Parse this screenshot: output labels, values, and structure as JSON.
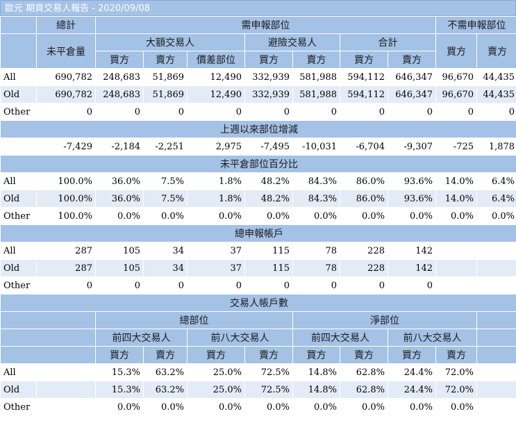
{
  "title": "歐元 期貨交易人報告 - 2020/09/08",
  "headers": {
    "total": "總計",
    "reportable": "需申報部位",
    "nonreportable": "不需申報部位",
    "open_interest": "未平倉量",
    "large_traders": "大額交易人",
    "hedgers": "避險交易人",
    "combined": "合計",
    "buy": "買方",
    "sell": "賣方",
    "spread": "價差部位"
  },
  "positions": [
    {
      "label": "All",
      "values": [
        "690,782",
        "248,683",
        "51,869",
        "12,490",
        "332,939",
        "581,988",
        "594,112",
        "646,347",
        "96,670",
        "44,435"
      ]
    },
    {
      "label": "Old",
      "values": [
        "690,782",
        "248,683",
        "51,869",
        "12,490",
        "332,939",
        "581,988",
        "594,112",
        "646,347",
        "96,670",
        "44,435"
      ]
    },
    {
      "label": "Other",
      "values": [
        "0",
        "0",
        "0",
        "0",
        "0",
        "0",
        "0",
        "0",
        "0",
        "0"
      ]
    }
  ],
  "changes_title": "上週以來部位增減",
  "changes": {
    "label": "",
    "values": [
      "-7,429",
      "-2,184",
      "-2,251",
      "2,975",
      "-7,495",
      "-10,031",
      "-6,704",
      "-9,307",
      "-725",
      "1,878"
    ]
  },
  "percent_title": "未平倉部位百分比",
  "percent": [
    {
      "label": "All",
      "values": [
        "100.0%",
        "36.0%",
        "7.5%",
        "1.8%",
        "48.2%",
        "84.3%",
        "86.0%",
        "93.6%",
        "14.0%",
        "6.4%"
      ]
    },
    {
      "label": "Old",
      "values": [
        "100.0%",
        "36.0%",
        "7.5%",
        "1.8%",
        "48.2%",
        "84.3%",
        "86.0%",
        "93.6%",
        "14.0%",
        "6.4%"
      ]
    },
    {
      "label": "Other",
      "values": [
        "100.0%",
        "0.0%",
        "0.0%",
        "0.0%",
        "0.0%",
        "0.0%",
        "0.0%",
        "0.0%",
        "0.0%",
        "0.0%"
      ]
    }
  ],
  "accounts_title": "總申報帳戶",
  "accounts": [
    {
      "label": "All",
      "values": [
        "287",
        "105",
        "34",
        "37",
        "115",
        "78",
        "228",
        "142",
        "",
        ""
      ]
    },
    {
      "label": "Old",
      "values": [
        "287",
        "105",
        "34",
        "37",
        "115",
        "78",
        "228",
        "142",
        "",
        ""
      ]
    },
    {
      "label": "Other",
      "values": [
        "0",
        "0",
        "0",
        "0",
        "0",
        "0",
        "0",
        "0",
        "",
        ""
      ]
    }
  ],
  "concentration_title": "交易人帳戶數",
  "concentration_headers": {
    "gross": "總部位",
    "net": "淨部位",
    "top4": "前四大交易人",
    "top8": "前八大交易人",
    "buy": "買方",
    "sell": "賣方"
  },
  "concentration": [
    {
      "label": "All",
      "values": [
        "15.3%",
        "63.2%",
        "25.0%",
        "72.5%",
        "14.8%",
        "62.8%",
        "24.4%",
        "72.0%"
      ]
    },
    {
      "label": "Old",
      "values": [
        "15.3%",
        "63.2%",
        "25.0%",
        "72.5%",
        "14.8%",
        "62.8%",
        "24.4%",
        "72.0%"
      ]
    },
    {
      "label": "Other",
      "values": [
        "0.0%",
        "0.0%",
        "0.0%",
        "0.0%",
        "0.0%",
        "0.0%",
        "0.0%",
        "0.0%"
      ]
    }
  ]
}
